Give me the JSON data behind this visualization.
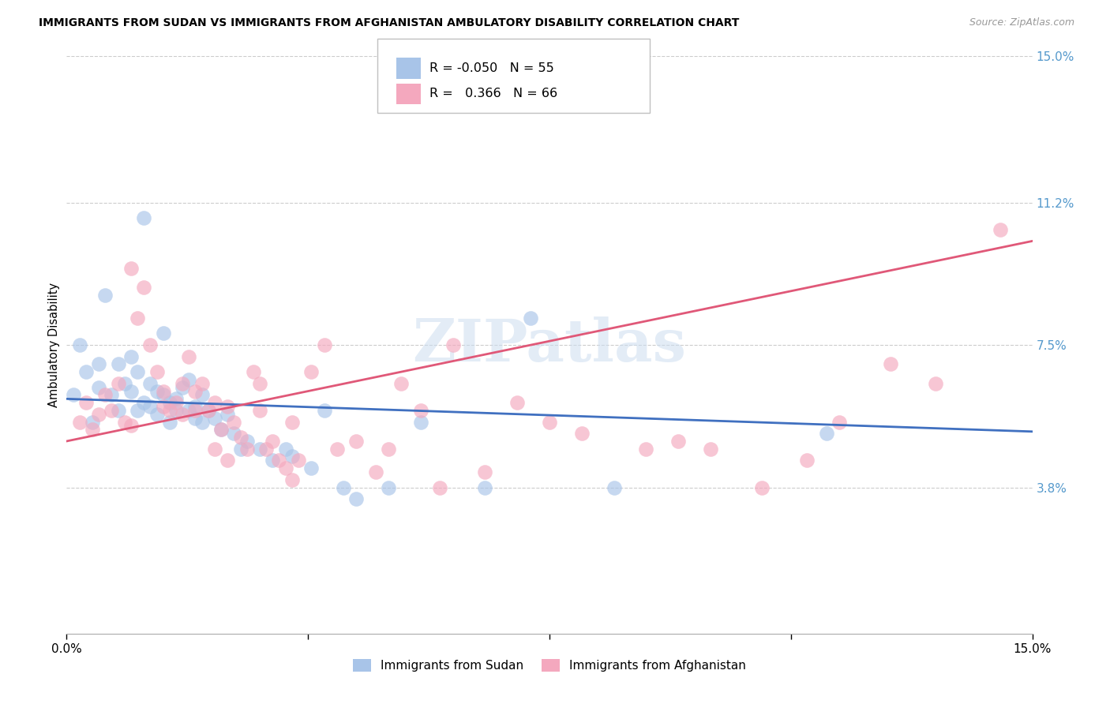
{
  "title": "IMMIGRANTS FROM SUDAN VS IMMIGRANTS FROM AFGHANISTAN AMBULATORY DISABILITY CORRELATION CHART",
  "source": "Source: ZipAtlas.com",
  "ylabel": "Ambulatory Disability",
  "ytick_values": [
    3.8,
    7.5,
    11.2,
    15.0
  ],
  "xlim": [
    0.0,
    15.0
  ],
  "ylim": [
    0.0,
    15.0
  ],
  "legend_sudan_r": "-0.050",
  "legend_sudan_n": "55",
  "legend_afghan_r": "0.366",
  "legend_afghan_n": "66",
  "sudan_color": "#a8c4e8",
  "afghan_color": "#f4a8be",
  "sudan_line_color": "#4070c0",
  "afghan_line_color": "#e05878",
  "watermark": "ZIPatlas",
  "sudan_x": [
    0.1,
    0.2,
    0.3,
    0.4,
    0.5,
    0.5,
    0.6,
    0.7,
    0.8,
    0.8,
    0.9,
    1.0,
    1.0,
    1.1,
    1.1,
    1.2,
    1.2,
    1.3,
    1.3,
    1.4,
    1.4,
    1.5,
    1.5,
    1.6,
    1.6,
    1.7,
    1.7,
    1.8,
    1.9,
    1.9,
    2.0,
    2.0,
    2.1,
    2.1,
    2.2,
    2.3,
    2.4,
    2.5,
    2.6,
    2.7,
    2.8,
    3.0,
    3.2,
    3.4,
    3.5,
    3.8,
    4.0,
    4.3,
    4.5,
    5.0,
    5.5,
    6.5,
    7.2,
    8.5,
    11.8
  ],
  "sudan_y": [
    6.2,
    7.5,
    6.8,
    5.5,
    7.0,
    6.4,
    8.8,
    6.2,
    5.8,
    7.0,
    6.5,
    6.3,
    7.2,
    5.8,
    6.8,
    6.0,
    10.8,
    5.9,
    6.5,
    5.7,
    6.3,
    6.2,
    7.8,
    6.0,
    5.5,
    6.1,
    5.8,
    6.4,
    5.8,
    6.6,
    5.6,
    5.9,
    5.5,
    6.2,
    5.8,
    5.6,
    5.3,
    5.7,
    5.2,
    4.8,
    5.0,
    4.8,
    4.5,
    4.8,
    4.6,
    4.3,
    5.8,
    3.8,
    3.5,
    3.8,
    5.5,
    3.8,
    8.2,
    3.8,
    5.2
  ],
  "afghan_x": [
    0.2,
    0.3,
    0.4,
    0.5,
    0.6,
    0.7,
    0.8,
    0.9,
    1.0,
    1.0,
    1.1,
    1.2,
    1.3,
    1.4,
    1.5,
    1.5,
    1.6,
    1.7,
    1.8,
    1.8,
    1.9,
    2.0,
    2.0,
    2.1,
    2.2,
    2.3,
    2.3,
    2.4,
    2.5,
    2.5,
    2.6,
    2.7,
    2.8,
    2.9,
    3.0,
    3.0,
    3.1,
    3.2,
    3.3,
    3.4,
    3.5,
    3.5,
    3.6,
    3.8,
    4.0,
    4.2,
    4.5,
    4.8,
    5.0,
    5.2,
    5.5,
    5.8,
    6.0,
    6.5,
    7.0,
    7.5,
    8.0,
    9.0,
    9.5,
    10.0,
    10.8,
    11.5,
    12.0,
    12.8,
    13.5,
    14.5
  ],
  "afghan_y": [
    5.5,
    6.0,
    5.3,
    5.7,
    6.2,
    5.8,
    6.5,
    5.5,
    5.4,
    9.5,
    8.2,
    9.0,
    7.5,
    6.8,
    6.3,
    5.9,
    5.8,
    6.0,
    6.5,
    5.7,
    7.2,
    5.8,
    6.3,
    6.5,
    5.8,
    6.0,
    4.8,
    5.3,
    5.9,
    4.5,
    5.5,
    5.1,
    4.8,
    6.8,
    5.8,
    6.5,
    4.8,
    5.0,
    4.5,
    4.3,
    5.5,
    4.0,
    4.5,
    6.8,
    7.5,
    4.8,
    5.0,
    4.2,
    4.8,
    6.5,
    5.8,
    3.8,
    7.5,
    4.2,
    6.0,
    5.5,
    5.2,
    4.8,
    5.0,
    4.8,
    3.8,
    4.5,
    5.5,
    7.0,
    6.5,
    10.5
  ]
}
